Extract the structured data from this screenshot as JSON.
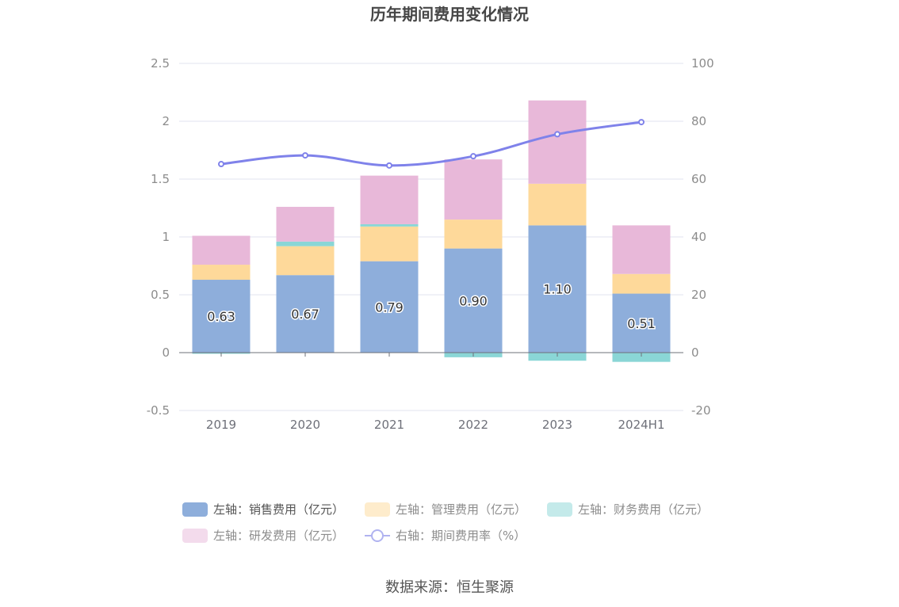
{
  "chart_data": {
    "type": "bar",
    "stacked": true,
    "title": "历年期间费用变化情况",
    "categories": [
      "2019",
      "2020",
      "2021",
      "2022",
      "2023",
      "2024H1"
    ],
    "series": [
      {
        "name": "左轴：销售费用（亿元）",
        "axis": "left",
        "color": "#8eaedb",
        "values": [
          0.63,
          0.67,
          0.79,
          0.9,
          1.1,
          0.51
        ],
        "show_labels": true
      },
      {
        "name": "左轴：管理费用（亿元）",
        "axis": "left",
        "color": "#fed99a",
        "values": [
          0.13,
          0.25,
          0.3,
          0.25,
          0.36,
          0.17
        ]
      },
      {
        "name": "左轴：财务费用（亿元）",
        "axis": "left",
        "color": "#8ad6d6",
        "values": [
          -0.01,
          0.04,
          0.02,
          -0.04,
          -0.07,
          -0.08
        ]
      },
      {
        "name": "左轴：研发费用（亿元）",
        "axis": "left",
        "color": "#e8b8d9",
        "values": [
          0.25,
          0.3,
          0.42,
          0.52,
          0.72,
          0.42
        ]
      },
      {
        "name": "右轴：期间费用率（%）",
        "axis": "right",
        "type": "line",
        "color": "#7f82ea",
        "values": [
          65.2,
          68.2,
          64.7,
          67.9,
          75.5,
          79.7
        ]
      }
    ],
    "y_left": {
      "min": -0.5,
      "max": 2.5,
      "ticks": [
        -0.5,
        0,
        0.5,
        1,
        1.5,
        2,
        2.5
      ],
      "tick_labels": [
        "-0.5",
        "0",
        "0.5",
        "1",
        "1.5",
        "2",
        "2.5"
      ]
    },
    "y_right": {
      "min": -20,
      "max": 100,
      "ticks": [
        -20,
        0,
        20,
        40,
        60,
        80,
        100
      ],
      "tick_labels": [
        "-20",
        "0",
        "20",
        "40",
        "60",
        "80",
        "100"
      ]
    },
    "legend_position": "bottom",
    "grid": true,
    "source": "数据来源：恒生聚源"
  }
}
